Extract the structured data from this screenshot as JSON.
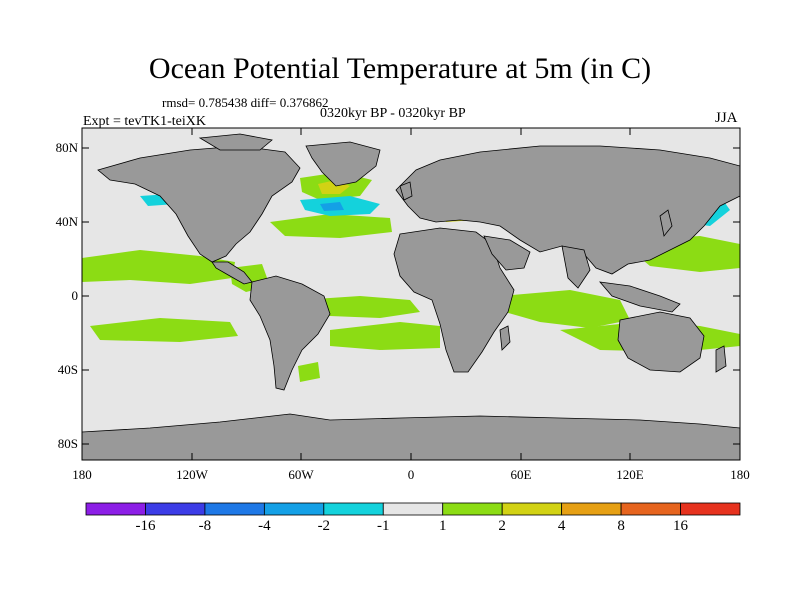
{
  "title": "Ocean Potential Temperature at 5m (in C)",
  "stats": "rmsd= 0.785438  diff= 0.376862",
  "period": "0320kyr BP - 0320kyr BP",
  "experiment": "Expt = tevTK1-teiXK",
  "season": "JJA",
  "y_ticks": [
    "80N",
    "40N",
    "0",
    "40S",
    "80S"
  ],
  "x_ticks": [
    "180",
    "120W",
    "60W",
    "0",
    "60E",
    "120E",
    "180"
  ],
  "colorbar": {
    "labels": [
      "-16",
      "-8",
      "-4",
      "-2",
      "-1",
      "1",
      "2",
      "4",
      "8",
      "16"
    ],
    "colors": [
      "#8c1ee6",
      "#3c3ce6",
      "#1e78e6",
      "#14a0e6",
      "#14d2dc",
      "#e6e6e6",
      "#8cdc14",
      "#d2d214",
      "#e6a014",
      "#e6641e",
      "#e6321e"
    ]
  },
  "map_colors": {
    "ocean_neutral": "#e6e6e6",
    "land": "#999999",
    "warm_1_2": "#8cdc14",
    "warm_2_4": "#d2d214",
    "cool_m2_m1": "#14d2dc",
    "cool_m4_m2": "#14a0e6"
  }
}
